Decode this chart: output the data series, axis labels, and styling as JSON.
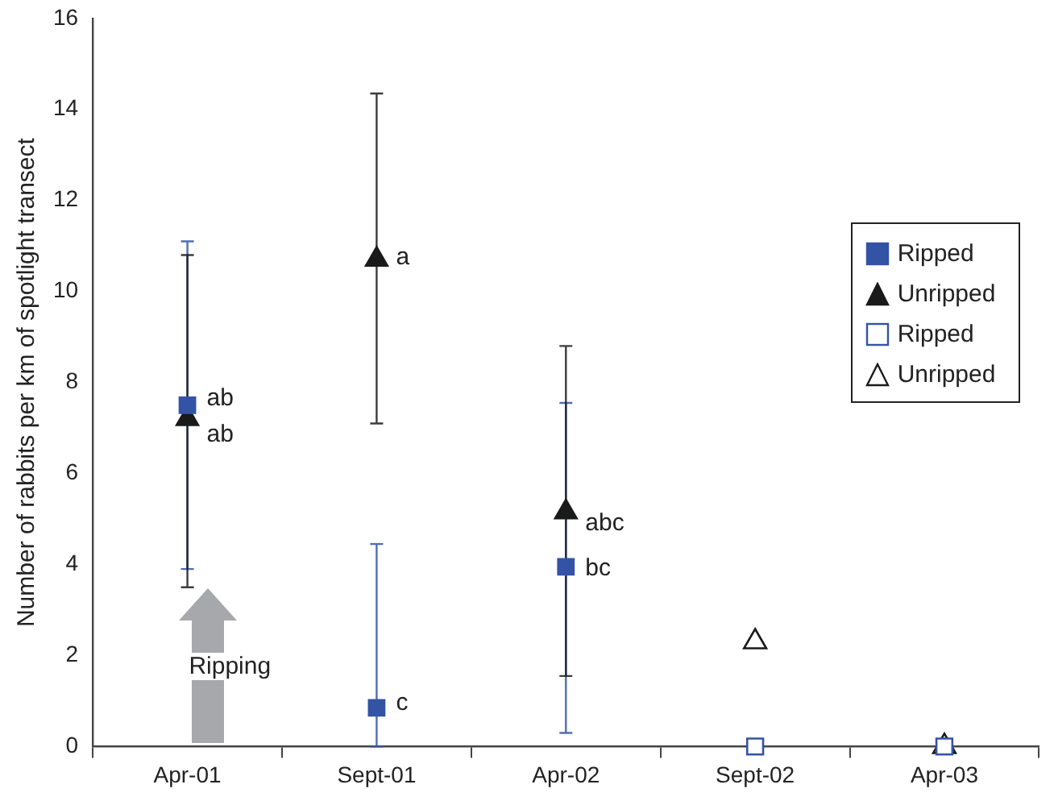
{
  "chart_data": {
    "type": "scatter",
    "ylabel": "Number of rabbits per km of spotlight transect",
    "categories": [
      "Apr-01",
      "Sept-01",
      "Apr-02",
      "Sept-02",
      "Apr-03"
    ],
    "series": [
      {
        "name": "Ripped",
        "color": "#3353a4",
        "marker": "square",
        "values": [
          7.5,
          0.85,
          3.95,
          null,
          null
        ],
        "errors": [
          [
            3.9,
            11.1
          ],
          [
            0,
            4.45
          ],
          [
            0.3,
            7.55
          ],
          null,
          null
        ]
      },
      {
        "name": "Unripped",
        "color": "#1a1a1a",
        "marker": "triangle",
        "values": [
          7.2,
          10.7,
          5.15,
          null,
          null
        ],
        "errors": [
          [
            3.5,
            10.8
          ],
          [
            7.1,
            14.35
          ],
          [
            1.55,
            8.8
          ],
          null,
          null
        ]
      },
      {
        "name": "Ripped",
        "color": "#3353a4",
        "marker": "square-open",
        "values": [
          null,
          null,
          null,
          0,
          0
        ]
      },
      {
        "name": "Unripped",
        "color": "#1a1a1a",
        "marker": "triangle-open",
        "values": [
          null,
          null,
          null,
          2.3,
          0
        ]
      }
    ],
    "ylim": [
      0,
      16
    ],
    "yticks": [
      0,
      2,
      4,
      6,
      8,
      10,
      12,
      14,
      16
    ],
    "grid": false,
    "legend": "right",
    "annotations": [
      {
        "text": "ab",
        "x": "Apr-01",
        "y": 7.65
      },
      {
        "text": "ab",
        "x": "Apr-01",
        "y": 6.85
      },
      {
        "text": "a",
        "x": "Sept-01",
        "y": 10.75
      },
      {
        "text": "c",
        "x": "Sept-01",
        "y": 0.95
      },
      {
        "text": "abc",
        "x": "Apr-02",
        "y": 4.9
      },
      {
        "text": "bc",
        "x": "Apr-02",
        "y": 3.9
      },
      "Ripping"
    ]
  }
}
